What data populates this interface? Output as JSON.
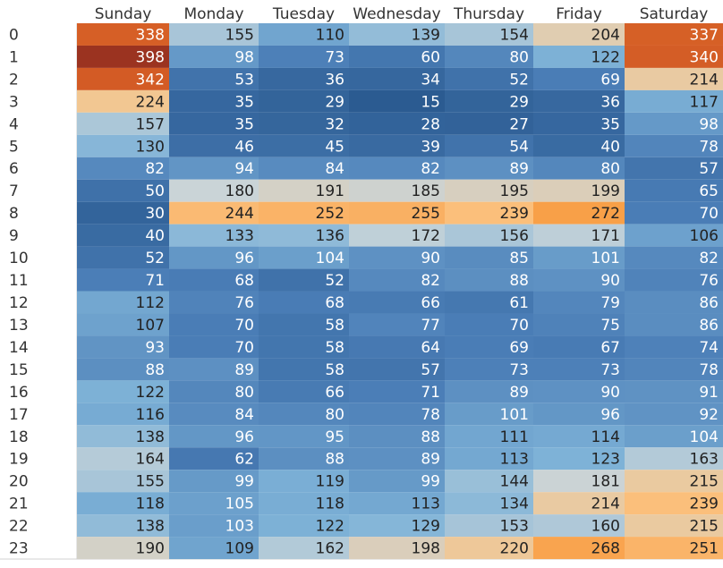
{
  "chart_data": {
    "type": "heatmap",
    "title": "",
    "xlabel": "",
    "ylabel": "",
    "grid": false,
    "legend": "none",
    "columns": [
      "Sunday",
      "Monday",
      "Tuesday",
      "Wednesday",
      "Thursday",
      "Friday",
      "Saturday"
    ],
    "rows": [
      "0",
      "1",
      "2",
      "3",
      "4",
      "5",
      "6",
      "7",
      "8",
      "9",
      "10",
      "11",
      "12",
      "13",
      "14",
      "15",
      "16",
      "17",
      "18",
      "19",
      "20",
      "21",
      "22",
      "23"
    ],
    "values": [
      [
        338,
        155,
        110,
        139,
        154,
        204,
        337
      ],
      [
        398,
        98,
        73,
        60,
        80,
        122,
        340
      ],
      [
        342,
        53,
        36,
        34,
        52,
        69,
        214
      ],
      [
        224,
        35,
        29,
        15,
        29,
        36,
        117
      ],
      [
        157,
        35,
        32,
        28,
        27,
        35,
        98
      ],
      [
        130,
        46,
        45,
        39,
        54,
        40,
        78
      ],
      [
        82,
        94,
        84,
        82,
        89,
        80,
        57
      ],
      [
        50,
        180,
        191,
        185,
        195,
        199,
        65
      ],
      [
        30,
        244,
        252,
        255,
        239,
        272,
        70
      ],
      [
        40,
        133,
        136,
        172,
        156,
        171,
        106
      ],
      [
        52,
        96,
        104,
        90,
        85,
        101,
        82
      ],
      [
        71,
        68,
        52,
        82,
        88,
        90,
        76
      ],
      [
        112,
        76,
        68,
        66,
        61,
        79,
        86
      ],
      [
        107,
        70,
        58,
        77,
        70,
        75,
        86
      ],
      [
        93,
        70,
        58,
        64,
        69,
        67,
        74
      ],
      [
        88,
        89,
        58,
        57,
        73,
        73,
        78
      ],
      [
        122,
        80,
        66,
        71,
        89,
        90,
        91
      ],
      [
        116,
        84,
        80,
        78,
        101,
        96,
        92
      ],
      [
        138,
        96,
        95,
        88,
        111,
        114,
        104
      ],
      [
        164,
        62,
        88,
        89,
        113,
        123,
        163
      ],
      [
        155,
        99,
        119,
        99,
        144,
        181,
        215
      ],
      [
        118,
        105,
        118,
        113,
        134,
        214,
        239
      ],
      [
        138,
        103,
        122,
        129,
        153,
        160,
        215
      ],
      [
        190,
        109,
        162,
        198,
        220,
        268,
        251
      ]
    ],
    "color_scale": {
      "min": 15,
      "max": 398,
      "stops": [
        "#2b5b91",
        "#4a7db6",
        "#7fb3d8",
        "#c9d4d8",
        "#fbc483",
        "#f7902f",
        "#d25a25",
        "#9b3320"
      ]
    }
  }
}
